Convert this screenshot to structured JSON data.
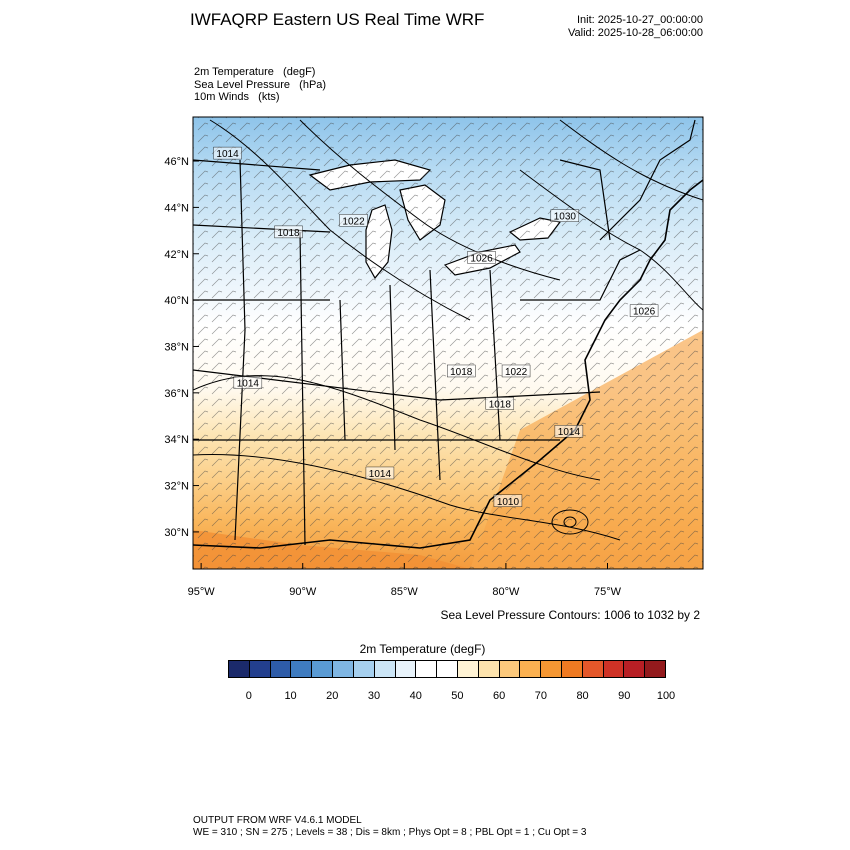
{
  "header": {
    "title": "IWFAQRP Eastern US Real Time WRF",
    "init": "Init: 2025-10-27_00:00:00",
    "valid": "Valid: 2025-10-28_06:00:00"
  },
  "fields": [
    "2m Temperature   (degF)",
    "Sea Level Pressure   (hPa)",
    "10m Winds   (kts)"
  ],
  "map": {
    "lat_ticks": [
      "46°N",
      "44°N",
      "42°N",
      "40°N",
      "38°N",
      "36°N",
      "34°N",
      "32°N",
      "30°N"
    ],
    "lon_ticks": [
      "95°W",
      "90°W",
      "85°W",
      "80°W",
      "75°W"
    ],
    "lat_values": [
      46,
      44,
      42,
      40,
      38,
      36,
      34,
      32,
      30
    ],
    "lon_values": [
      -95,
      -90,
      -85,
      -80,
      -75
    ],
    "extent": {
      "lon_min": -95.4,
      "lon_max": -70.3,
      "lat_min": 28.4,
      "lat_max": 47.9
    },
    "isobar_labels": [
      {
        "text": "1014",
        "lon": -93.7,
        "lat": 46.3
      },
      {
        "text": "1018",
        "lon": -90.7,
        "lat": 42.9
      },
      {
        "text": "1022",
        "lon": -87.5,
        "lat": 43.4
      },
      {
        "text": "1026",
        "lon": -81.2,
        "lat": 41.8
      },
      {
        "text": "1030",
        "lon": -77.1,
        "lat": 43.6
      },
      {
        "text": "1026",
        "lon": -73.2,
        "lat": 39.5
      },
      {
        "text": "1018",
        "lon": -82.2,
        "lat": 36.9
      },
      {
        "text": "1022",
        "lon": -79.5,
        "lat": 36.9
      },
      {
        "text": "1014",
        "lon": -92.7,
        "lat": 36.4
      },
      {
        "text": "1018",
        "lon": -80.3,
        "lat": 35.5
      },
      {
        "text": "1014",
        "lon": -76.9,
        "lat": 34.3
      },
      {
        "text": "1014",
        "lon": -86.2,
        "lat": 32.5
      },
      {
        "text": "1010",
        "lon": -79.9,
        "lat": 31.3
      }
    ]
  },
  "contour_note": "Sea Level Pressure Contours: 1006 to 1032 by 2",
  "colorbar": {
    "title": "2m Temperature  (degF)",
    "colors": [
      "#1b2a6b",
      "#233f8e",
      "#2e5ca8",
      "#3f7cc0",
      "#5a9bd4",
      "#7fb6e3",
      "#a6d0ef",
      "#cbe5f6",
      "#e8f3fb",
      "#ffffff",
      "#ffffff",
      "#fff3d4",
      "#fde3ad",
      "#fcc97c",
      "#fbb151",
      "#f59733",
      "#ef7a22",
      "#e4572a",
      "#cf3226",
      "#b81f25",
      "#931a1d"
    ],
    "labels": [
      "0",
      "10",
      "20",
      "30",
      "40",
      "50",
      "60",
      "70",
      "80",
      "90",
      "100"
    ]
  },
  "footer": {
    "line1": "OUTPUT FROM WRF V4.6.1 MODEL",
    "line2": "WE = 310 ; SN = 275 ; Levels = 38 ; Dis = 8km ; Phys Opt = 8 ; PBL Opt = 1 ; Cu Opt = 3"
  }
}
